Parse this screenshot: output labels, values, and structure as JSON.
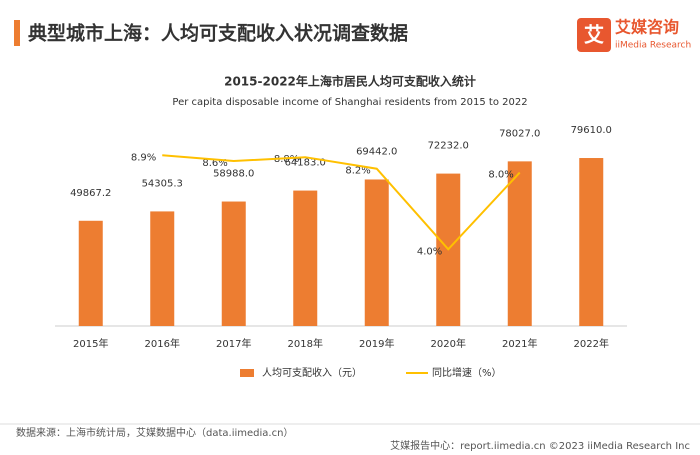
{
  "header": {
    "title": "典型城市上海：人均可支配收入状况调查数据",
    "logo": "艾媒咨询",
    "logo_sub": "iiMedia Research"
  },
  "chart_data": {
    "type": "bar_line",
    "title": "2015-2022年上海市居民人均可支配收入统计",
    "subtitle": "Per capita disposable income of Shanghai residents from 2015 to 2022",
    "categories": [
      "2015年",
      "2016年",
      "2017年",
      "2018年",
      "2019年",
      "2020年",
      "2021年",
      "2022年"
    ],
    "series": [
      {
        "name": "人均可支配收入（元）",
        "color": "#ed7d31",
        "type": "bar",
        "values": [
          49867.2,
          54305.3,
          58988,
          64183,
          69442,
          72232,
          78027,
          79610
        ],
        "value_labels": [
          "49867.2",
          "54305.3",
          "58988.0",
          "64183.0",
          "69442.0",
          "72232.0",
          "78027.0",
          "79610.0"
        ]
      },
      {
        "name": "同比增速（%）",
        "color": "#ffc000",
        "type": "line",
        "axis": "y2",
        "values": [
          null,
          8.9,
          8.6,
          8.8,
          8.2,
          4.0,
          8.0,
          null
        ],
        "value_labels": [
          null,
          "8.9%",
          "8.6%",
          "8.8%",
          "8.2%",
          "4.0%",
          "8.0%",
          null
        ]
      }
    ],
    "ylim": [
      0,
      100000
    ],
    "y2lim": [
      0,
      11
    ]
  },
  "footer": {
    "source": "数据来源：上海市统计局，艾媒数据中心（data.iimedia.cn）",
    "credit": "艾媒报告中心：report.iimedia.cn  ©2023  iiMedia Research  Inc"
  }
}
